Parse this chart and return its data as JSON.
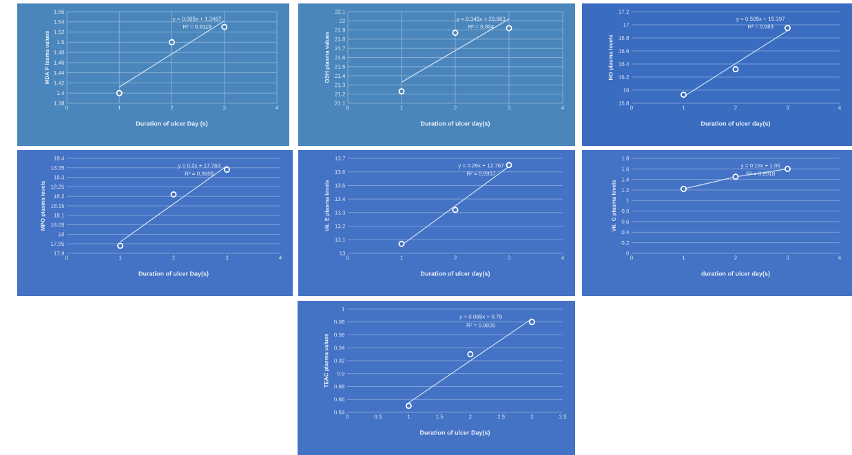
{
  "chart_data": [
    {
      "type": "scatter",
      "xlabel": "Duration of ulcer Day (s)",
      "ylabel": "MDA P lasma values",
      "xlim": [
        0,
        4
      ],
      "xticks": [
        0,
        1,
        2,
        3,
        4
      ],
      "ylim": [
        1.38,
        1.56
      ],
      "yticks": [
        1.38,
        1.4,
        1.42,
        1.44,
        1.46,
        1.48,
        1.5,
        1.52,
        1.54,
        1.56
      ],
      "grid": true,
      "annotations": [
        "y = 0.065x + 1.3467",
        "R² = 0.9119"
      ],
      "series": [
        {
          "marker": "circle",
          "color": "#ffffff",
          "x": [
            1,
            2,
            3
          ],
          "values": [
            1.4,
            1.5,
            1.53
          ]
        },
        {
          "type": "line",
          "marker": "none",
          "color": "#c9dcf0",
          "x": [
            1,
            3
          ],
          "values": [
            1.412,
            1.542
          ]
        }
      ]
    },
    {
      "type": "scatter",
      "xlabel": "Duration of ulcer day(s)",
      "ylabel": "GSH plasma values",
      "xlim": [
        0,
        4
      ],
      "xticks": [
        0,
        1,
        2,
        3,
        4
      ],
      "ylim": [
        21.1,
        22.1
      ],
      "yticks": [
        21.1,
        21.2,
        21.3,
        21.4,
        21.5,
        21.6,
        21.7,
        21.8,
        21.9,
        22,
        22.1
      ],
      "grid": true,
      "annotations": [
        "y = 0.345x + 20.983",
        "R² = 0.804"
      ],
      "series": [
        {
          "marker": "circle",
          "color": "#ffffff",
          "x": [
            1,
            2,
            3
          ],
          "values": [
            21.23,
            21.87,
            21.92
          ]
        },
        {
          "type": "line",
          "marker": "none",
          "color": "#c9dcf0",
          "x": [
            1,
            3
          ],
          "values": [
            21.33,
            22.02
          ]
        }
      ]
    },
    {
      "type": "scatter",
      "xlabel": "Duration of ulcer day(s)",
      "ylabel": "NO plasma levels",
      "xlim": [
        0,
        4
      ],
      "xticks": [
        0,
        1,
        2,
        3,
        4
      ],
      "ylim": [
        15.8,
        17.2
      ],
      "yticks": [
        15.8,
        16,
        16.2,
        16.4,
        16.6,
        16.8,
        17,
        17.2
      ],
      "grid": "y",
      "annotations": [
        "y = 0.505x + 15.397",
        "R² = 0.983"
      ],
      "series": [
        {
          "marker": "circle",
          "color": "#ffffff",
          "x": [
            1,
            2,
            3
          ],
          "values": [
            15.93,
            16.32,
            16.95
          ]
        },
        {
          "type": "line",
          "marker": "none",
          "color": "#c9dcf0",
          "x": [
            1,
            3
          ],
          "values": [
            15.9,
            16.91
          ]
        }
      ]
    },
    {
      "type": "scatter",
      "xlabel": "Duration of ulcer Day(s)",
      "ylabel": "MPO plasma levels",
      "xlim": [
        0,
        4
      ],
      "xticks": [
        0,
        1,
        2,
        3,
        4
      ],
      "ylim": [
        17.9,
        18.4
      ],
      "yticks": [
        17.9,
        17.95,
        18,
        18.05,
        18.1,
        18.15,
        18.2,
        18.25,
        18.3,
        18.35,
        18.4
      ],
      "grid": "y",
      "annotations": [
        "y = 0.2x + 17.763",
        "R² = 0.9608"
      ],
      "series": [
        {
          "marker": "circle",
          "color": "#ffffff",
          "x": [
            1,
            2,
            3
          ],
          "values": [
            17.94,
            18.21,
            18.34
          ]
        },
        {
          "type": "line",
          "marker": "none",
          "color": "#c9dcf0",
          "x": [
            1,
            3
          ],
          "values": [
            17.96,
            18.36
          ]
        }
      ]
    },
    {
      "type": "scatter",
      "xlabel": "Duration of ulcer day(s)",
      "ylabel": "Vit. E plasma levels",
      "xlim": [
        0,
        4
      ],
      "xticks": [
        0,
        1,
        2,
        3,
        4
      ],
      "ylim": [
        13,
        13.7
      ],
      "yticks": [
        13,
        13.1,
        13.2,
        13.3,
        13.4,
        13.5,
        13.6,
        13.7
      ],
      "grid": "y",
      "annotations": [
        "y = 0.29x + 12.767",
        "R² = 0.9937"
      ],
      "series": [
        {
          "marker": "circle",
          "color": "#ffffff",
          "x": [
            1,
            2,
            3
          ],
          "values": [
            13.07,
            13.32,
            13.65
          ]
        },
        {
          "type": "line",
          "marker": "none",
          "color": "#c9dcf0",
          "x": [
            1,
            3
          ],
          "values": [
            13.06,
            13.64
          ]
        }
      ]
    },
    {
      "type": "scatter",
      "xlabel": "duration of ulcer day(s)",
      "ylabel": "Vit. C plasma levels",
      "xlim": [
        0,
        4
      ],
      "xticks": [
        0,
        1,
        2,
        3,
        4
      ],
      "ylim": [
        0,
        1.8
      ],
      "yticks": [
        0,
        0.2,
        0.4,
        0.6,
        0.8,
        1,
        1.2,
        1.4,
        1.6,
        1.8
      ],
      "grid": "y",
      "annotations": [
        "y = 0.19x + 1.05",
        "R² = 0.9918"
      ],
      "series": [
        {
          "marker": "circle",
          "color": "#ffffff",
          "x": [
            1,
            2,
            3
          ],
          "values": [
            1.22,
            1.45,
            1.6
          ]
        },
        {
          "type": "line",
          "marker": "none",
          "color": "#c9dcf0",
          "x": [
            1,
            2,
            3
          ],
          "values": [
            1.22,
            1.45,
            1.6
          ]
        }
      ]
    },
    {
      "type": "scatter",
      "xlabel": "Duration of ulcer Day(s)",
      "ylabel": "TEAC plasma values",
      "xlim": [
        0,
        3.5
      ],
      "xticks": [
        0,
        0.5,
        1,
        1.5,
        2,
        2.5,
        3,
        3.5
      ],
      "ylim": [
        0.84,
        1
      ],
      "yticks": [
        0.84,
        0.86,
        0.88,
        0.9,
        0.92,
        0.94,
        0.96,
        0.98,
        1
      ],
      "grid": "y",
      "annotations": [
        "y = 0.065x + 0.79",
        "R² = 0.9826"
      ],
      "series": [
        {
          "marker": "circle",
          "color": "#ffffff",
          "x": [
            1,
            2,
            3
          ],
          "values": [
            0.85,
            0.93,
            0.98
          ]
        },
        {
          "type": "line",
          "marker": "none",
          "color": "#c9dcf0",
          "x": [
            1,
            3
          ],
          "values": [
            0.855,
            0.985
          ]
        }
      ]
    }
  ]
}
